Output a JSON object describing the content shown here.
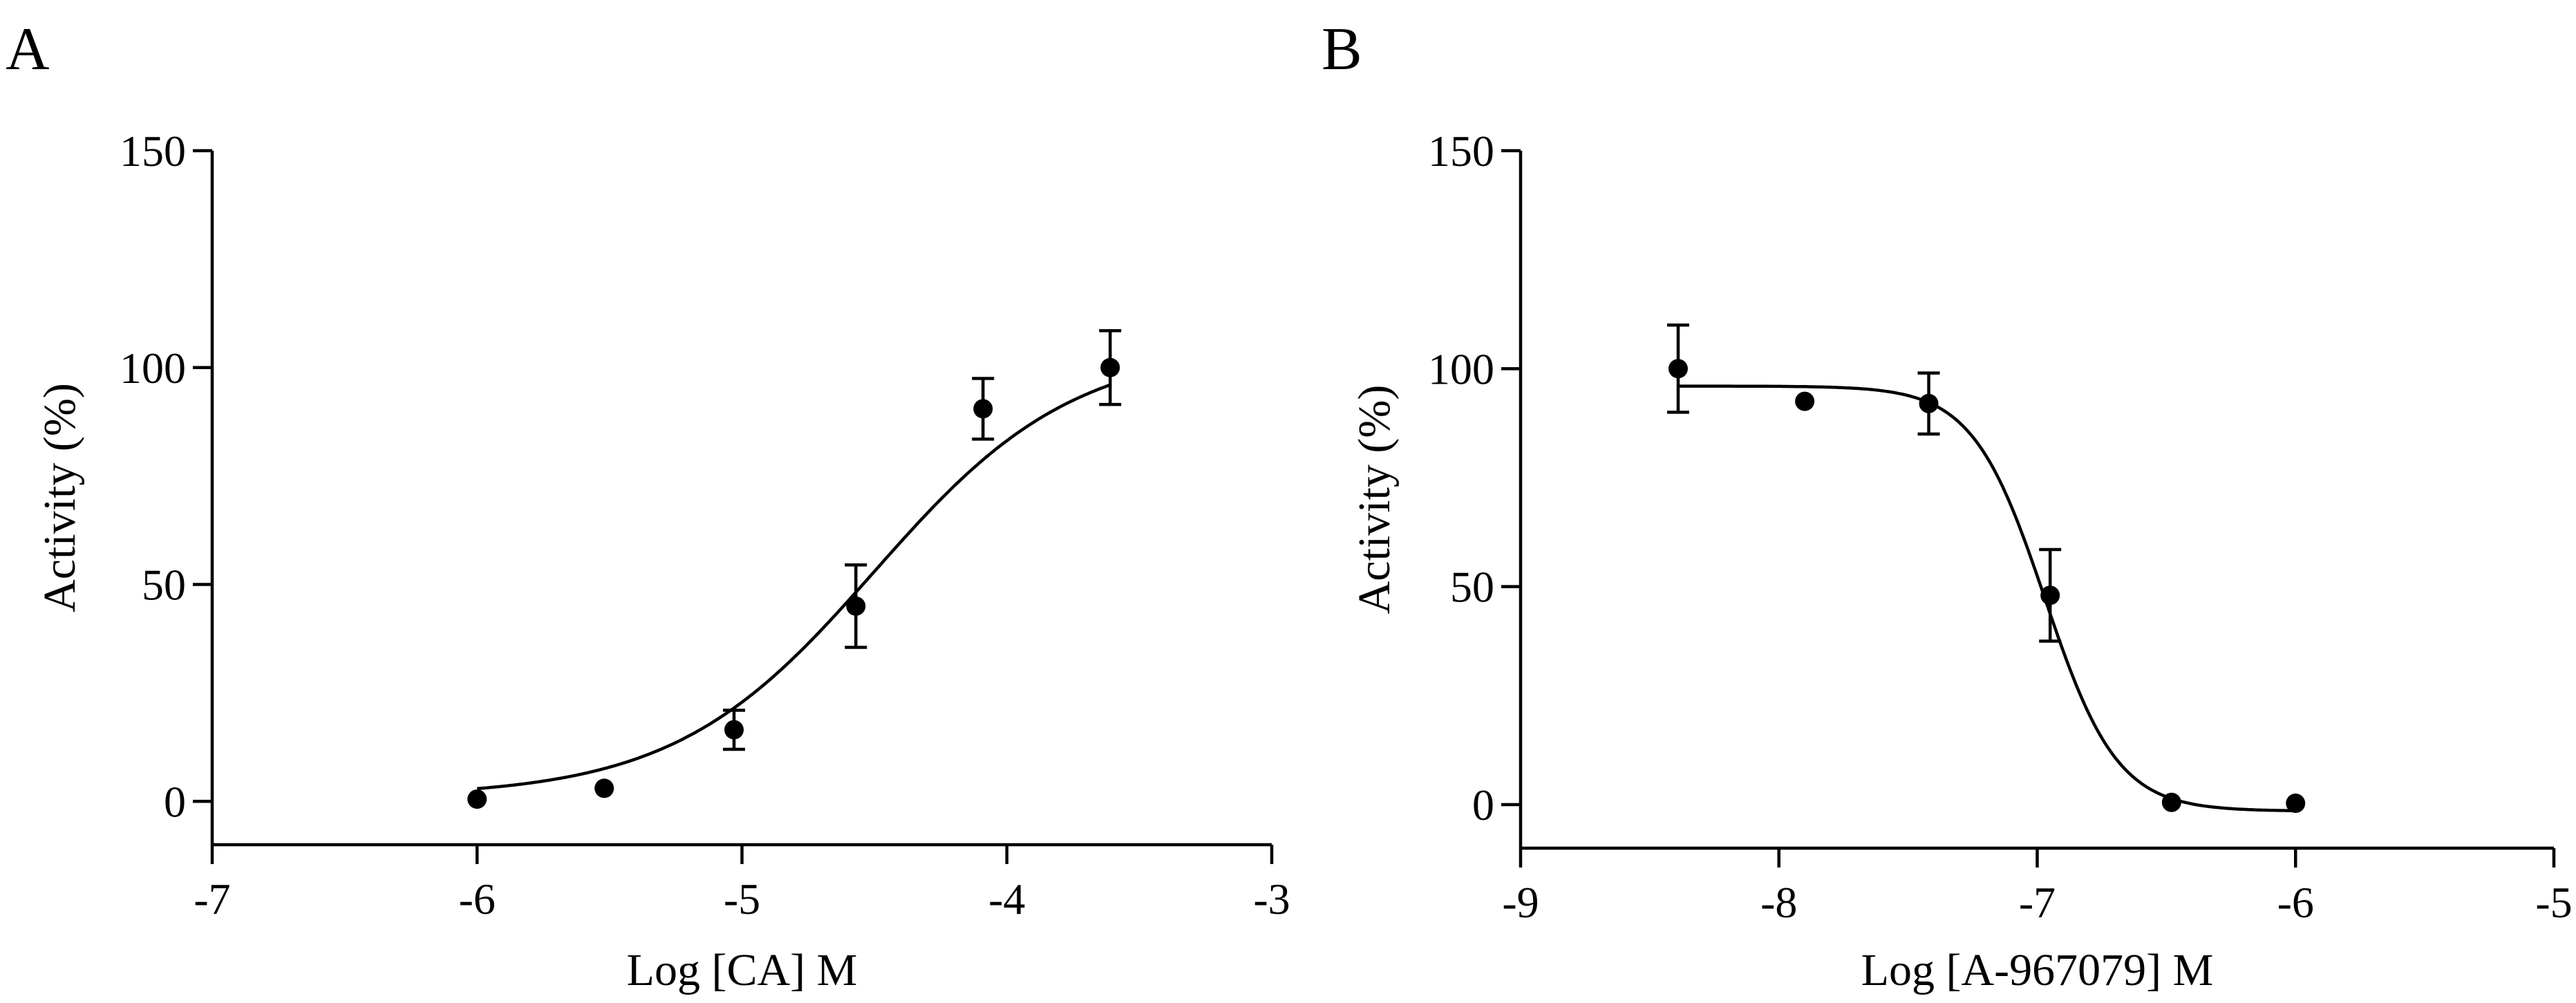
{
  "chart_data": [
    {
      "type": "scatter",
      "panel": "A",
      "title": "",
      "xlabel": "Log [CA] M",
      "ylabel": "Activity (%)",
      "xlim": [
        -7,
        -3
      ],
      "ylim": [
        -10,
        150
      ],
      "xticks": [
        -7,
        -6,
        -5,
        -4,
        -3
      ],
      "yticks": [
        0,
        50,
        100,
        150
      ],
      "xtick_labels": [
        "-7",
        "-6",
        "-5",
        "-4",
        "-3"
      ],
      "ytick_labels": [
        "0",
        "50",
        "100",
        "150"
      ],
      "series": [
        {
          "name": "Activity",
          "x": [
            -6.0,
            -5.52,
            -5.03,
            -4.57,
            -4.09,
            -3.61
          ],
          "y": [
            0.5,
            3,
            16.5,
            45,
            90.5,
            100
          ],
          "error": [
            0,
            0,
            4.5,
            9.5,
            7,
            8.5
          ]
        }
      ],
      "fit": {
        "model": "four-parameter logistic",
        "bottom": 1,
        "top": 105,
        "log_ec50": -4.5,
        "hill_slope": 1.15,
        "x_range": [
          -6.0,
          -3.61
        ]
      }
    },
    {
      "type": "scatter",
      "panel": "B",
      "title": "",
      "xlabel": "Log [A-967079] M",
      "ylabel": "Activity (%)",
      "xlim": [
        -9,
        -5
      ],
      "ylim": [
        -10,
        150
      ],
      "xticks": [
        -9,
        -8,
        -7,
        -6,
        -5
      ],
      "yticks": [
        0,
        50,
        100,
        150
      ],
      "xtick_labels": [
        "-9",
        "-8",
        "-7",
        "-6",
        "-5"
      ],
      "ytick_labels": [
        "0",
        "50",
        "100",
        "150"
      ],
      "series": [
        {
          "name": "Activity",
          "x": [
            -8.39,
            -7.9,
            -7.42,
            -6.95,
            -6.48,
            -6.0
          ],
          "y": [
            100,
            92.5,
            92,
            48,
            0.5,
            0.3
          ],
          "error": [
            10,
            0,
            7,
            10.5,
            0,
            0
          ]
        }
      ],
      "fit": {
        "model": "four-parameter logistic",
        "bottom": -1.5,
        "top": 96,
        "log_ic50": -6.97,
        "hill_slope": -3.1,
        "x_range": [
          -8.39,
          -6.0
        ]
      }
    }
  ]
}
